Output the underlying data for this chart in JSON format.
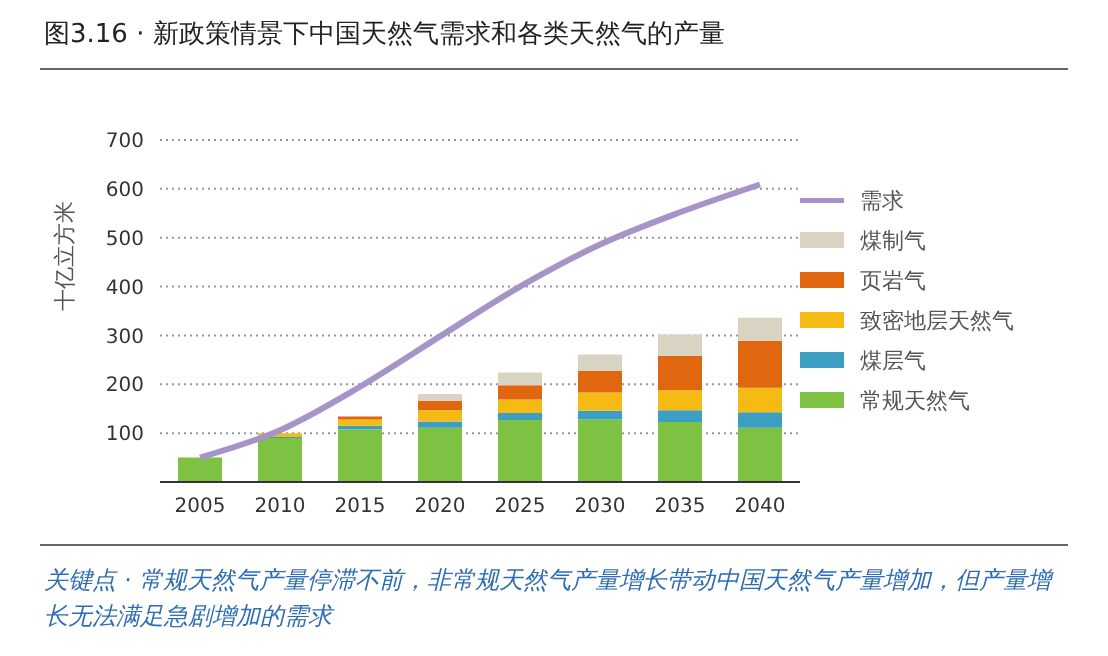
{
  "chart_data": {
    "type": "bar",
    "title": "图3.16 · 新政策情景下中国天然气需求和各类天然气的产量",
    "ylabel": "十亿立方米",
    "categories": [
      "2005",
      "2010",
      "2015",
      "2020",
      "2025",
      "2030",
      "2035",
      "2040"
    ],
    "stacked": true,
    "series": [
      {
        "name": "常规天然气",
        "color": "#7dc242",
        "values": [
          50,
          90,
          108,
          111,
          127,
          128,
          123,
          111
        ]
      },
      {
        "name": "煤层气",
        "color": "#3b9ec2",
        "values": [
          0,
          2,
          7,
          13,
          14,
          18,
          24,
          32
        ]
      },
      {
        "name": "致密地层天然气",
        "color": "#f5bb14",
        "values": [
          0,
          8,
          13,
          23,
          28,
          37,
          41,
          50
        ]
      },
      {
        "name": "页岩气",
        "color": "#e0670f",
        "values": [
          0,
          0,
          6,
          19,
          29,
          44,
          70,
          96
        ]
      },
      {
        "name": "煤制气",
        "color": "#d9d3c4",
        "values": [
          0,
          0,
          0,
          14,
          26,
          34,
          44,
          47
        ]
      },
      {
        "name": "需求",
        "type": "line",
        "color": "#a694c8",
        "values": [
          50,
          106,
          195,
          298,
          400,
          486,
          552,
          609
        ]
      }
    ],
    "ylim": [
      0,
      700
    ],
    "yticks": [
      {
        "value": 0,
        "label": null
      },
      100,
      200,
      300,
      400,
      500,
      600,
      700
    ],
    "grid": "y",
    "legend": "right",
    "marker": "none",
    "line_style": "solid",
    "annotations": [
      "关键点 · 常规天然气产量停滞不前，非常规天然气产量增长带动中国天然气产量增加，但产量增长无法满足急剧增加的需求"
    ]
  }
}
